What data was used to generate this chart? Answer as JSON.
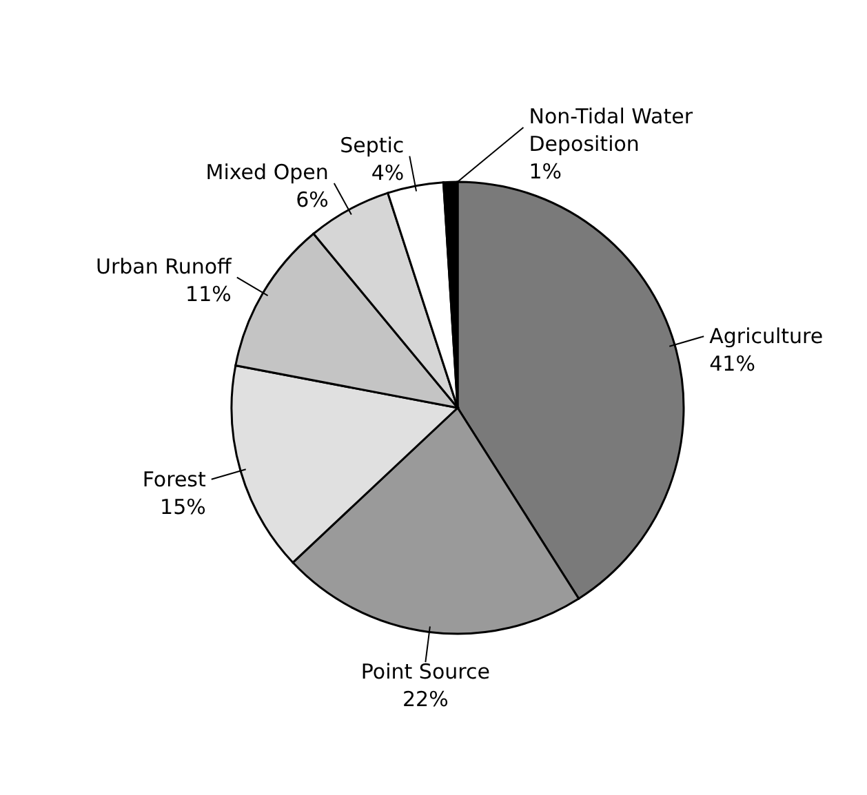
{
  "chart_data": {
    "type": "pie",
    "categories": [
      "Agriculture",
      "Point Source",
      "Forest",
      "Urban Runoff",
      "Mixed Open",
      "Septic",
      "Non-Tidal Water Deposition"
    ],
    "values": [
      41,
      22,
      15,
      11,
      6,
      4,
      1
    ],
    "colors": [
      "#7a7a7a",
      "#9a9a9a",
      "#e0e0e0",
      "#c4c4c4",
      "#d6d6d6",
      "#ffffff",
      "#000000"
    ],
    "value_labels": [
      "41%",
      "22%",
      "15%",
      "11%",
      "6%",
      "4%",
      "1%"
    ]
  }
}
